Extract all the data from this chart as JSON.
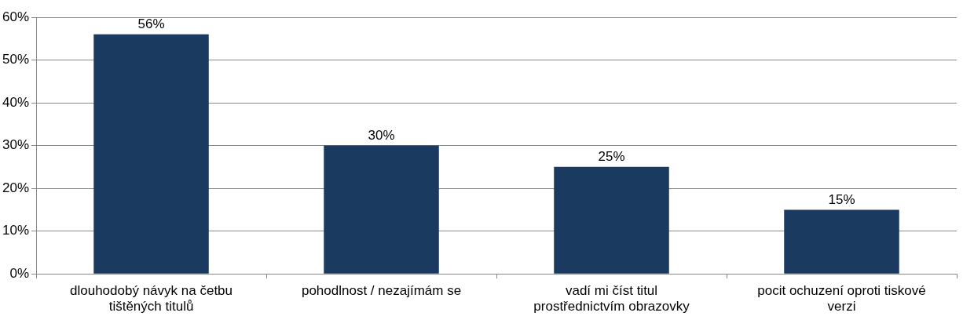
{
  "chart_data": {
    "type": "bar",
    "categories": [
      "dlouhodobý návyk na četbu tištěných titulů",
      "pohodlnost / nezajímám se",
      "vadí mi číst titul prostřednictvím obrazovky",
      "pocit ochuzení oproti tiskové verzi"
    ],
    "values": [
      56,
      30,
      25,
      15
    ],
    "value_labels": [
      "56%",
      "30%",
      "25%",
      "15%"
    ],
    "color": "#1b3a5f",
    "ylim": [
      0,
      60
    ],
    "yticks": [
      {
        "value": 0,
        "label": "0%"
      },
      {
        "value": 10,
        "label": "10%"
      },
      {
        "value": 20,
        "label": "20%"
      },
      {
        "value": 30,
        "label": "30%"
      },
      {
        "value": 40,
        "label": "40%"
      },
      {
        "value": 50,
        "label": "50%"
      },
      {
        "value": 60,
        "label": "60%"
      }
    ],
    "grid": "y",
    "legend": false
  }
}
